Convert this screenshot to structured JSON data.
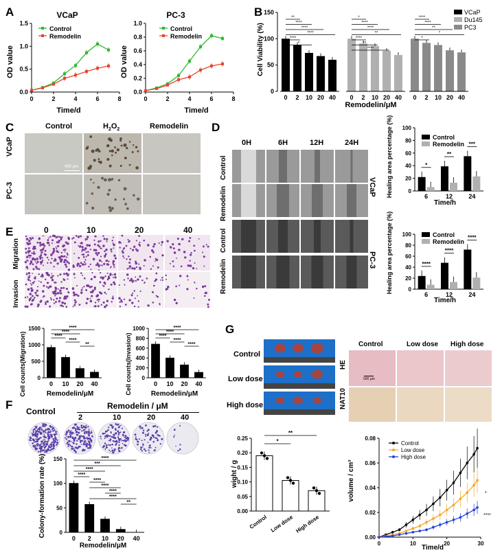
{
  "panels": {
    "A": {
      "letter": "A",
      "left": {
        "title": "VCaP",
        "xlabel": "Time/d",
        "ylabel": "OD value"
      },
      "right": {
        "title": "PC-3",
        "xlabel": "Time/d",
        "ylabel": "OD value"
      },
      "legend": [
        "Control",
        "Remodelin"
      ]
    },
    "B": {
      "letter": "B",
      "ylabel": "Cell Viability (%)",
      "xlabel": "Remodelin/μM",
      "legend": [
        "VCaP",
        "Du145",
        "PC3"
      ]
    },
    "C": {
      "letter": "C",
      "cols": [
        "Control",
        "H2O2",
        "Remodelin"
      ],
      "col_h2o2_main": "H",
      "col_h2o2_sub1": "2",
      "col_h2o2_mid": "O",
      "col_h2o2_sub2": "2",
      "rows": [
        "VCaP",
        "PC-3"
      ],
      "scalebar": "400 μm"
    },
    "D": {
      "letter": "D",
      "cols": [
        "0H",
        "6H",
        "12H",
        "24H"
      ],
      "rows": [
        "Control",
        "Remodelin",
        "Control",
        "Remodelin"
      ],
      "side": [
        "VCaP",
        "PC-3"
      ],
      "ylabel": "Healing area percentage (%)",
      "xlabel": "Time/h",
      "legend": [
        "Control",
        "Remodelin"
      ]
    },
    "E": {
      "letter": "E",
      "cols": [
        "0",
        "10",
        "20",
        "40"
      ],
      "rows": [
        "Migration",
        "Invasion"
      ],
      "left_ylabel": "Cell counts(Migration)",
      "right_ylabel": "Cell counts(Invasion)",
      "xlabel": "Remodelin/μM"
    },
    "F": {
      "letter": "F",
      "control": "Control",
      "header": "Remodelin / μM",
      "doses": [
        "2",
        "10",
        "20",
        "40"
      ],
      "ylabel": "Colony-formation rate (%)",
      "xlabel": "Remodelin/μM"
    },
    "G": {
      "letter": "G",
      "rows": [
        "Control",
        "Low dose",
        "High dose"
      ],
      "ihc_cols": [
        "Control",
        "Low dose",
        "High dose"
      ],
      "ihc_rows": [
        "HE",
        "NAT10"
      ],
      "scalebar": "500 μm",
      "weight_ylabel": "wight / g",
      "volume_ylabel": "volume / cm³",
      "volume_xlabel": "Time/d",
      "legend": [
        "Control",
        "Low dose",
        "High dose"
      ]
    }
  },
  "colors": {
    "control": "#2db82d",
    "remodelin": "#e8442e",
    "black": "#000000",
    "grey1": "#b0b0b0",
    "grey2": "#8a8a8a",
    "blue": "#2240d8",
    "orange": "#f5a623"
  },
  "chart_data": [
    {
      "id": "A-VCaP",
      "type": "line",
      "title": "VCaP",
      "xlabel": "Time/d",
      "ylabel": "OD value",
      "xlim": [
        0,
        8
      ],
      "ylim": [
        0,
        1.5
      ],
      "xticks": [
        "0",
        "2",
        "4",
        "6",
        "8"
      ],
      "yticks": [
        "0.0",
        "0.5",
        "1.0",
        "1.5"
      ],
      "x": [
        0,
        1,
        2,
        3,
        4,
        5,
        6,
        7
      ],
      "series": [
        {
          "name": "Control",
          "color": "#2db82d",
          "values": [
            0.04,
            0.1,
            0.2,
            0.4,
            0.58,
            0.86,
            1.05,
            0.92
          ]
        },
        {
          "name": "Remodelin",
          "color": "#e8442e",
          "values": [
            0.04,
            0.09,
            0.17,
            0.3,
            0.37,
            0.45,
            0.52,
            0.57
          ]
        }
      ]
    },
    {
      "id": "A-PC3",
      "type": "line",
      "title": "PC-3",
      "xlabel": "Time/d",
      "ylabel": "OD value",
      "xlim": [
        0,
        8
      ],
      "ylim": [
        0,
        1.0
      ],
      "xticks": [
        "0",
        "2",
        "4",
        "6",
        "8"
      ],
      "yticks": [
        "0.0",
        "0.2",
        "0.4",
        "0.6",
        "0.8",
        "1.0"
      ],
      "x": [
        0,
        1,
        2,
        3,
        4,
        5,
        6,
        7
      ],
      "series": [
        {
          "name": "Control",
          "color": "#2db82d",
          "values": [
            0.02,
            0.06,
            0.12,
            0.24,
            0.45,
            0.66,
            0.82,
            0.78
          ]
        },
        {
          "name": "Remodelin",
          "color": "#e8442e",
          "values": [
            0.02,
            0.05,
            0.1,
            0.18,
            0.22,
            0.32,
            0.38,
            0.41
          ]
        }
      ]
    },
    {
      "id": "B",
      "type": "bar",
      "ylabel": "Cell Viability (%)",
      "xlabel": "Remodelin/μM",
      "ylim": [
        0,
        150
      ],
      "yticks": [
        "0",
        "50",
        "100",
        "150"
      ],
      "categories": [
        "0",
        "2",
        "10",
        "20",
        "40"
      ],
      "series": [
        {
          "name": "VCaP",
          "color": "#000000",
          "values": [
            100,
            88,
            73,
            67,
            60
          ],
          "sig": [
            "**",
            "****",
            "****",
            "****",
            "****",
            "*"
          ]
        },
        {
          "name": "Du145",
          "color": "#b0b0b0",
          "values": [
            100,
            91,
            86,
            77,
            69
          ],
          "sig": [
            "*",
            "****",
            "****",
            "**",
            "****",
            "**",
            "****"
          ]
        },
        {
          "name": "PC3",
          "color": "#8a8a8a",
          "values": [
            100,
            92,
            88,
            78,
            74
          ],
          "sig": [
            "****",
            "****",
            "**",
            "*",
            "*"
          ]
        }
      ]
    },
    {
      "id": "D-VCaP",
      "type": "bar",
      "ylabel": "Healing area percentage (%)",
      "xlabel": "Time/h",
      "ylim": [
        0,
        100
      ],
      "yticks": [
        "0",
        "20",
        "40",
        "60",
        "80",
        "100"
      ],
      "categories": [
        "6",
        "12",
        "24"
      ],
      "series": [
        {
          "name": "Control",
          "color": "#000000",
          "values": [
            22,
            39,
            55
          ]
        },
        {
          "name": "Remodelin",
          "color": "#b0b0b0",
          "values": [
            6,
            13,
            23
          ]
        }
      ],
      "sig": [
        "*",
        "**",
        "***"
      ]
    },
    {
      "id": "D-PC3",
      "type": "bar",
      "ylabel": "Healing area percentage (%)",
      "xlabel": "Time/h",
      "ylim": [
        0,
        100
      ],
      "yticks": [
        "0",
        "20",
        "40",
        "60",
        "80",
        "100"
      ],
      "categories": [
        "6",
        "12",
        "24"
      ],
      "series": [
        {
          "name": "Control",
          "color": "#000000",
          "values": [
            24,
            48,
            72
          ]
        },
        {
          "name": "Remodelin",
          "color": "#b0b0b0",
          "values": [
            8,
            13,
            21
          ]
        }
      ],
      "sig": [
        "****",
        "****",
        "****"
      ]
    },
    {
      "id": "E-Migration",
      "type": "bar",
      "ylabel": "Cell counts(Migration)",
      "xlabel": "Remodelin/μM",
      "ylim": [
        0,
        1500
      ],
      "yticks": [
        "0",
        "500",
        "1000",
        "1500"
      ],
      "categories": [
        "0",
        "10",
        "20",
        "40"
      ],
      "values": [
        920,
        620,
        280,
        170
      ],
      "sig": [
        "****",
        "****",
        "****",
        "****",
        "**"
      ]
    },
    {
      "id": "E-Invasion",
      "type": "bar",
      "ylabel": "Cell counts(Invasion)",
      "xlabel": "Remodelin/μM",
      "ylim": [
        0,
        1000
      ],
      "yticks": [
        "0",
        "200",
        "400",
        "600",
        "800",
        "1000"
      ],
      "categories": [
        "0",
        "10",
        "20",
        "40"
      ],
      "values": [
        680,
        400,
        260,
        110
      ],
      "sig": [
        "****",
        "****",
        "****",
        "****",
        "****"
      ]
    },
    {
      "id": "F",
      "type": "bar",
      "ylabel": "Colony-formation rate (%)",
      "xlabel": "Remodelin/μM",
      "ylim": [
        0,
        150
      ],
      "yticks": [
        "0",
        "50",
        "100",
        "150"
      ],
      "categories": [
        "0",
        "2",
        "10",
        "20",
        "40"
      ],
      "values": [
        100,
        57,
        27,
        6,
        0
      ],
      "sig": [
        "****",
        "***",
        "****",
        "****",
        "****",
        "****",
        "****",
        "****",
        "**"
      ]
    },
    {
      "id": "G-weight",
      "type": "bar",
      "ylabel": "wight / g",
      "ylim": [
        0,
        0.25
      ],
      "yticks": [
        "0.00",
        "0.05",
        "0.10",
        "0.15",
        "0.20",
        "0.25"
      ],
      "categories": [
        "Control",
        "Low dose",
        "High dose"
      ],
      "values": [
        0.19,
        0.105,
        0.07
      ],
      "sig": [
        "**",
        "*"
      ]
    },
    {
      "id": "G-volume",
      "type": "line",
      "ylabel": "volume / cm³",
      "xlabel": "Time/d",
      "xlim": [
        0,
        30
      ],
      "ylim": [
        0,
        0.08
      ],
      "xticks": [
        "0",
        "10",
        "20",
        "30"
      ],
      "yticks": [
        "0.00",
        "0.02",
        "0.04",
        "0.06",
        "0.08"
      ],
      "x": [
        0,
        2,
        4,
        6,
        8,
        10,
        12,
        14,
        16,
        18,
        20,
        22,
        24,
        26,
        28,
        29
      ],
      "series": [
        {
          "name": "Control",
          "color": "#000000",
          "values": [
            0.0,
            0.002,
            0.004,
            0.006,
            0.01,
            0.014,
            0.018,
            0.022,
            0.027,
            0.032,
            0.038,
            0.044,
            0.052,
            0.06,
            0.067,
            0.072
          ]
        },
        {
          "name": "Low dose",
          "color": "#f5a623",
          "values": [
            0.0,
            0.001,
            0.002,
            0.003,
            0.005,
            0.007,
            0.009,
            0.012,
            0.015,
            0.018,
            0.022,
            0.026,
            0.031,
            0.036,
            0.042,
            0.046
          ]
        },
        {
          "name": "High dose",
          "color": "#2240d8",
          "values": [
            0.0,
            0.0005,
            0.001,
            0.002,
            0.003,
            0.004,
            0.005,
            0.006,
            0.008,
            0.01,
            0.012,
            0.014,
            0.016,
            0.019,
            0.022,
            0.024
          ]
        }
      ],
      "sig": [
        "*",
        "****"
      ]
    }
  ]
}
